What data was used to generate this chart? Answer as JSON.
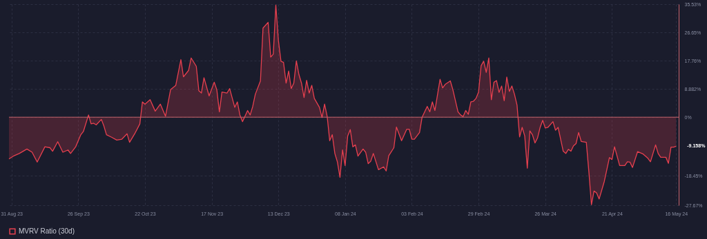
{
  "chart_data": {
    "type": "area",
    "x": [
      "2023-08-30",
      "2023-09-01",
      "2023-09-03",
      "2023-09-06",
      "2023-09-08",
      "2023-09-10",
      "2023-09-13",
      "2023-09-15",
      "2023-09-16",
      "2023-09-18",
      "2023-09-20",
      "2023-09-22",
      "2023-09-23",
      "2023-09-25",
      "2023-09-27",
      "2023-09-28",
      "2023-09-30",
      "2023-10-01",
      "2023-10-02",
      "2023-10-03",
      "2023-10-05",
      "2023-10-06",
      "2023-10-07",
      "2023-10-09",
      "2023-10-11",
      "2023-10-13",
      "2023-10-15",
      "2023-10-16",
      "2023-10-18",
      "2023-10-20",
      "2023-10-21",
      "2023-10-22",
      "2023-10-24",
      "2023-10-26",
      "2023-10-28",
      "2023-10-30",
      "2023-11-01",
      "2023-11-03",
      "2023-11-05",
      "2023-11-06",
      "2023-11-08",
      "2023-11-09",
      "2023-11-11",
      "2023-11-12",
      "2023-11-13",
      "2023-11-14",
      "2023-11-16",
      "2023-11-18",
      "2023-11-19",
      "2023-11-20",
      "2023-11-21",
      "2023-11-23",
      "2023-11-24",
      "2023-11-26",
      "2023-11-27",
      "2023-11-28",
      "2023-11-29",
      "2023-12-01",
      "2023-12-02",
      "2023-12-03",
      "2023-12-04",
      "2023-12-06",
      "2023-12-07",
      "2023-12-09",
      "2023-12-10",
      "2023-12-11",
      "2023-12-12",
      "2023-12-13",
      "2023-12-14",
      "2023-12-15",
      "2023-12-16",
      "2023-12-17",
      "2023-12-18",
      "2023-12-19",
      "2023-12-20",
      "2023-12-21",
      "2023-12-22",
      "2023-12-23",
      "2023-12-24",
      "2023-12-25",
      "2023-12-26",
      "2023-12-27",
      "2023-12-29",
      "2023-12-30",
      "2023-12-31",
      "2024-01-01",
      "2024-01-02",
      "2024-01-03",
      "2024-01-04",
      "2024-01-05",
      "2024-01-06",
      "2024-01-07",
      "2024-01-08",
      "2024-01-09",
      "2024-01-10",
      "2024-01-11",
      "2024-01-12",
      "2024-01-13",
      "2024-01-15",
      "2024-01-16",
      "2024-01-17",
      "2024-01-18",
      "2024-01-19",
      "2024-01-21",
      "2024-01-23",
      "2024-01-24",
      "2024-01-25",
      "2024-01-27",
      "2024-01-28",
      "2024-01-30",
      "2024-02-01",
      "2024-02-02",
      "2024-02-03",
      "2024-02-04",
      "2024-02-06",
      "2024-02-07",
      "2024-02-09",
      "2024-02-10",
      "2024-02-11",
      "2024-02-12",
      "2024-02-14",
      "2024-02-15",
      "2024-02-16",
      "2024-02-18",
      "2024-02-19",
      "2024-02-21",
      "2024-02-22",
      "2024-02-23",
      "2024-02-24",
      "2024-02-25",
      "2024-02-26",
      "2024-02-27",
      "2024-02-28",
      "2024-02-29",
      "2024-03-01",
      "2024-03-02",
      "2024-03-03",
      "2024-03-04",
      "2024-03-05",
      "2024-03-06",
      "2024-03-07",
      "2024-03-08",
      "2024-03-09",
      "2024-03-10",
      "2024-03-11",
      "2024-03-12",
      "2024-03-13",
      "2024-03-14",
      "2024-03-15",
      "2024-03-16",
      "2024-03-17",
      "2024-03-18",
      "2024-03-19",
      "2024-03-20",
      "2024-03-21",
      "2024-03-22",
      "2024-03-23",
      "2024-03-24",
      "2024-03-25",
      "2024-03-26",
      "2024-03-27",
      "2024-03-29",
      "2024-03-30",
      "2024-03-31",
      "2024-04-02",
      "2024-04-03",
      "2024-04-04",
      "2024-04-05",
      "2024-04-06",
      "2024-04-07",
      "2024-04-08",
      "2024-04-09",
      "2024-04-11",
      "2024-04-12",
      "2024-04-13",
      "2024-04-14",
      "2024-04-15",
      "2024-04-16",
      "2024-04-18",
      "2024-04-20",
      "2024-04-21",
      "2024-04-22",
      "2024-04-24",
      "2024-04-26",
      "2024-04-27",
      "2024-04-28",
      "2024-04-29",
      "2024-05-01",
      "2024-05-03",
      "2024-05-05",
      "2024-05-06",
      "2024-05-08",
      "2024-05-09",
      "2024-05-10",
      "2024-05-12",
      "2024-05-13",
      "2024-05-14",
      "2024-05-15",
      "2024-05-16"
    ],
    "series": [
      {
        "name": "MVRV Ratio (30d)",
        "color": "#e8404f",
        "values": [
          -13.1,
          -12.1,
          -11.4,
          -10.0,
          -11.0,
          -14.1,
          -9.3,
          -9.6,
          -10.7,
          -7.7,
          -11.0,
          -10.3,
          -11.4,
          -9.3,
          -5.5,
          -4.5,
          0.7,
          -2.1,
          -1.9,
          -2.4,
          -0.7,
          -2.8,
          -5.5,
          -6.3,
          -7.2,
          -6.9,
          -5.2,
          -7.9,
          -5.2,
          -2.1,
          4.8,
          4.1,
          5.5,
          1.9,
          4.1,
          0.3,
          8.7,
          10.0,
          18.1,
          12.7,
          14.7,
          18.6,
          16.0,
          8.3,
          7.6,
          12.4,
          6.7,
          11.0,
          8.6,
          1.7,
          7.9,
          7.6,
          9.0,
          3.1,
          4.8,
          0.7,
          -1.4,
          2.1,
          0.7,
          3.4,
          7.2,
          11.4,
          28.0,
          29.8,
          18.9,
          19.8,
          35.2,
          24.1,
          17.6,
          17.2,
          10.7,
          14.5,
          9.0,
          10.7,
          17.7,
          13.4,
          10.7,
          6.2,
          11.6,
          7.6,
          10.0,
          5.9,
          3.1,
          -0.1,
          4.1,
          0.3,
          -7.4,
          -5.5,
          -11.4,
          -14.1,
          -18.9,
          -10.3,
          -15.2,
          -5.9,
          -3.9,
          -9.3,
          -8.7,
          -12.2,
          -10.0,
          -11.0,
          -14.6,
          -13.8,
          -11.4,
          -16.5,
          -15.6,
          -16.9,
          -12.1,
          -9.6,
          -3.1,
          -7.4,
          -3.8,
          -3.8,
          -6.9,
          -6.9,
          -4.8,
          0,
          3.4,
          1.7,
          4.8,
          2.1,
          11.9,
          9.2,
          10.3,
          11.4,
          8.6,
          1.7,
          0.7,
          0.2,
          2.1,
          0.9,
          4.8,
          5.0,
          5.9,
          7.9,
          16.2,
          17.6,
          14.1,
          18.6,
          5.5,
          11.0,
          11.5,
          7.8,
          9.8,
          5.2,
          12.6,
          8.1,
          9.8,
          7.2,
          3.8,
          -6.2,
          -3.2,
          -5.9,
          -16.0,
          -4.3,
          -5.5,
          -8.1,
          -6.5,
          -3.2,
          -1.0,
          -3.4,
          -3.2,
          -1.4,
          -4.1,
          -3.2,
          -10.7,
          -11.4,
          -10.1,
          -10.7,
          -9.0,
          -8.3,
          -4.8,
          -7.6,
          -7.9,
          -17.2,
          -27.5,
          -23.2,
          -23.8,
          -25.7,
          -20.2,
          -12.7,
          -13.3,
          -9.3,
          -15.2,
          -15.2,
          -14.0,
          -14.1,
          -15.8,
          -10.8,
          -11.5,
          -12.9,
          -14.0,
          -8.7,
          -11.4,
          -12.6,
          -12.6,
          -14.5,
          -9.4,
          -9.4,
          -9.158
        ]
      }
    ],
    "xlim": [
      "2023-08-30",
      "2024-05-17"
    ],
    "xticks": [
      {
        "value": "2023-08-31",
        "label": "31 Aug 23"
      },
      {
        "value": "2023-09-26",
        "label": "26 Sep 23"
      },
      {
        "value": "2023-10-22",
        "label": "22 Oct 23"
      },
      {
        "value": "2023-11-17",
        "label": "17 Nov 23"
      },
      {
        "value": "2023-12-13",
        "label": "13 Dec 23"
      },
      {
        "value": "2024-01-08",
        "label": "08 Jan 24"
      },
      {
        "value": "2024-02-03",
        "label": "03 Feb 24"
      },
      {
        "value": "2024-02-29",
        "label": "29 Feb 24"
      },
      {
        "value": "2024-03-26",
        "label": "26 Mar 24"
      },
      {
        "value": "2024-04-21",
        "label": "21 Apr 24"
      },
      {
        "value": "2024-05-16",
        "label": "16 May 24"
      }
    ],
    "ylim": [
      -27.67,
      35.53
    ],
    "yticks": [
      {
        "value": -27.67,
        "label": "-27.67%"
      },
      {
        "value": -18.45,
        "label": "-18.45%"
      },
      {
        "value": 0,
        "label": "0%"
      },
      {
        "value": 8.882,
        "label": "8.882%"
      },
      {
        "value": 17.76,
        "label": "17.76%"
      },
      {
        "value": 26.65,
        "label": "26.65%"
      },
      {
        "value": 35.53,
        "label": "35.53%"
      }
    ],
    "ref_lines": [
      {
        "axis": "y",
        "value": 0,
        "color": "#c8646c"
      }
    ],
    "annotations": [
      {
        "text": "-9.158%",
        "x": "2024-05-16",
        "y": -9.158
      }
    ],
    "grid": true,
    "legend": "bottom"
  }
}
